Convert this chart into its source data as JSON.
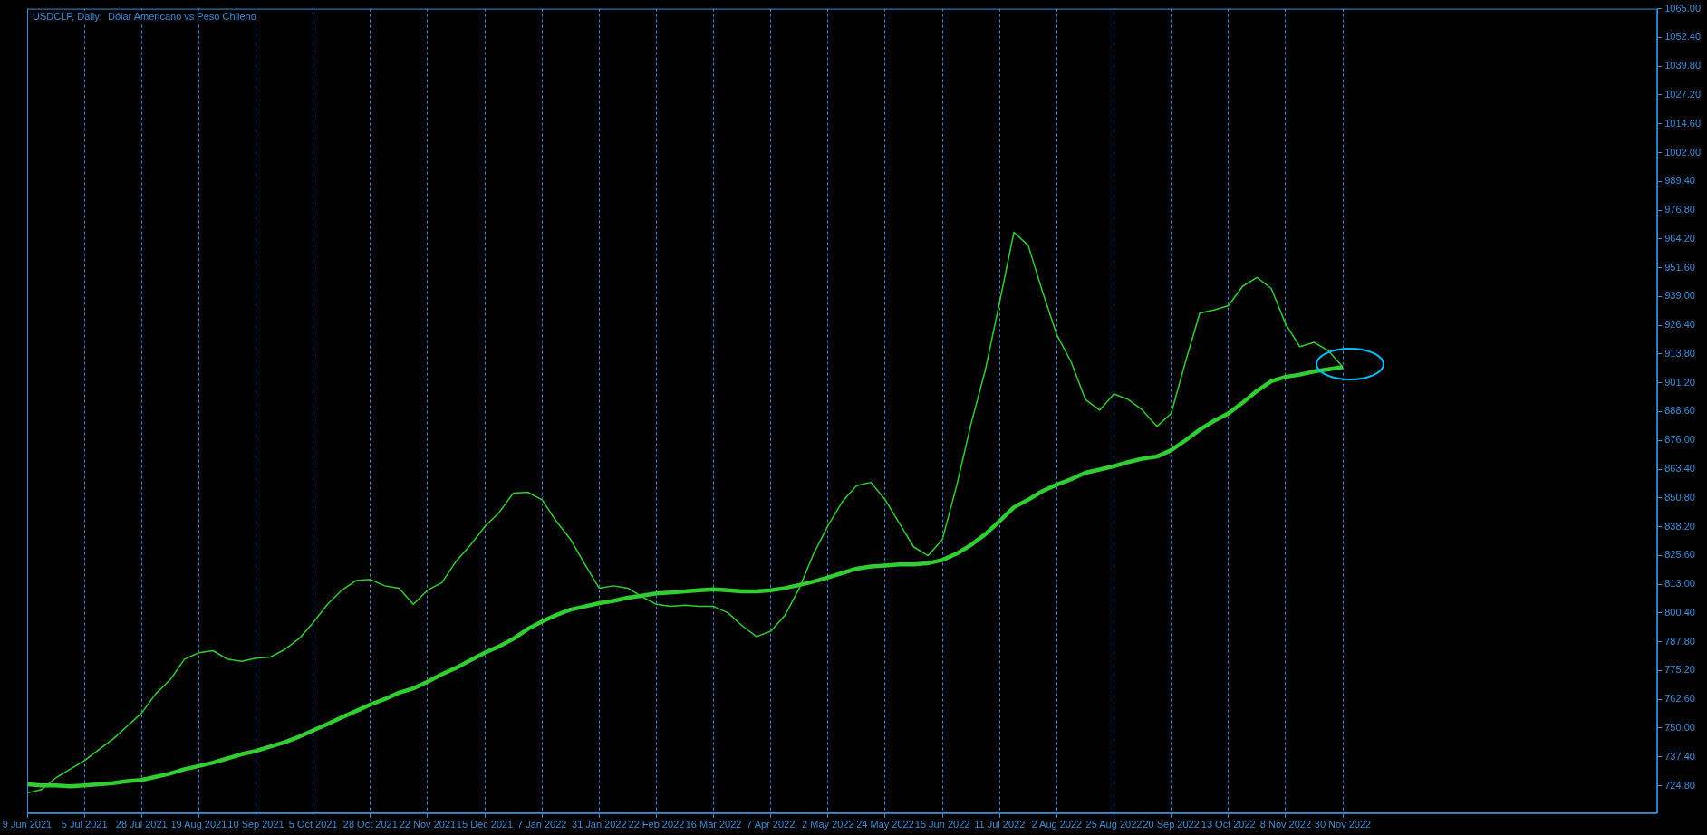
{
  "chart_data": {
    "type": "line",
    "title": "USDCLP, Daily:  Dólar Americano vs Peso Chileno",
    "categories": [
      "9 Jun 2021",
      null,
      null,
      null,
      "5 Jul 2021",
      null,
      null,
      null,
      "28 Jul 2021",
      null,
      null,
      null,
      "19 Aug 2021",
      null,
      null,
      null,
      "10 Sep 2021",
      null,
      null,
      null,
      "5 Oct 2021",
      null,
      null,
      null,
      "28 Oct 2021",
      null,
      null,
      null,
      "22 Nov 2021",
      null,
      null,
      null,
      "15 Dec 2021",
      null,
      null,
      null,
      "7 Jan 2022",
      null,
      null,
      null,
      "31 Jan 2022",
      null,
      null,
      null,
      "22 Feb 2022",
      null,
      null,
      null,
      "16 Mar 2022",
      null,
      null,
      null,
      "7 Apr 2022",
      null,
      null,
      null,
      "2 May 2022",
      null,
      null,
      null,
      "24 May 2022",
      null,
      null,
      null,
      "15 Jun 2022",
      null,
      null,
      null,
      "11 Jul 2022",
      null,
      null,
      null,
      "2 Aug 2022",
      null,
      null,
      null,
      "25 Aug 2022",
      null,
      null,
      null,
      "20 Sep 2022",
      null,
      null,
      null,
      "13 Oct 2022",
      null,
      null,
      null,
      "8 Nov 2022",
      null,
      null,
      null,
      "30 Nov 2022",
      null,
      null,
      null,
      null,
      null,
      null,
      null,
      null,
      null,
      null,
      null,
      null,
      null,
      null,
      null,
      null,
      null,
      null,
      null,
      null,
      null,
      null
    ],
    "series": [
      {
        "color": "#32cd32",
        "values": [
          721.6,
          723.1,
          728.2,
          732.0,
          735.8,
          740.5,
          745.2,
          750.9,
          756.6,
          765.1,
          771.2,
          780.2,
          783.0,
          783.9,
          780.2,
          779.2,
          780.6,
          781.1,
          784.4,
          789.1,
          796.2,
          804.2,
          810.4,
          814.6,
          815.1,
          812.3,
          811.3,
          804.2,
          810.4,
          813.7,
          823.1,
          830.2,
          838.2,
          844.4,
          852.9,
          853.3,
          850.0,
          840.6,
          832.6,
          821.7,
          811.3,
          812.3,
          811.3,
          807.5,
          804.2,
          803.3,
          803.8,
          803.3,
          803.3,
          800.5,
          794.8,
          790.1,
          792.4,
          799.5,
          811.3,
          826.4,
          838.7,
          849.1,
          856.2,
          857.6,
          850.0,
          839.6,
          829.3,
          825.5,
          832.6,
          856.2,
          883.1,
          906.7,
          936.4,
          967.1,
          961.4,
          941.1,
          922.2,
          910.4,
          893.9,
          889.2,
          896.3,
          893.9,
          889.2,
          882.1,
          887.8,
          910.4,
          931.7,
          933.1,
          935.0,
          943.5,
          947.3,
          942.5,
          927.0,
          917.0,
          918.9,
          915.2,
          908.1,
          null,
          null,
          null,
          null,
          null,
          null,
          null,
          null,
          null,
          null,
          null,
          null,
          null,
          null,
          null,
          null,
          null,
          null,
          null,
          null,
          null,
          null
        ]
      },
      {
        "color": "#32cd32",
        "values": [
          725.4,
          724.9,
          724.9,
          724.5,
          724.9,
          725.4,
          725.9,
          726.8,
          727.3,
          728.7,
          730.1,
          732.0,
          733.4,
          734.9,
          736.7,
          738.6,
          740.0,
          741.9,
          743.8,
          746.2,
          749.0,
          751.8,
          754.7,
          757.5,
          760.3,
          762.7,
          765.5,
          767.4,
          770.3,
          773.6,
          776.4,
          779.7,
          783.0,
          785.8,
          789.1,
          793.4,
          796.7,
          799.5,
          801.9,
          803.3,
          804.7,
          805.7,
          807.1,
          808.0,
          809.0,
          809.4,
          809.9,
          810.4,
          810.8,
          810.4,
          809.9,
          809.9,
          810.4,
          811.3,
          812.7,
          814.2,
          816.0,
          817.9,
          819.8,
          820.8,
          821.2,
          821.7,
          821.7,
          822.2,
          823.6,
          826.4,
          830.2,
          834.9,
          840.6,
          846.7,
          850.0,
          853.8,
          856.6,
          859.0,
          861.8,
          863.2,
          864.7,
          866.5,
          868.0,
          868.9,
          871.7,
          876.0,
          880.7,
          884.5,
          887.8,
          892.5,
          897.7,
          901.9,
          903.8,
          904.8,
          906.2,
          907.1,
          908.1,
          null,
          null,
          null,
          null,
          null,
          null,
          null,
          null,
          null,
          null,
          null,
          null,
          null,
          null,
          null,
          null,
          null,
          null,
          null,
          null,
          null,
          null
        ]
      }
    ],
    "ylim": [
      712.8,
      1065
    ],
    "yticks": [
      {
        "value": 724.8,
        "label": "724.80"
      },
      {
        "value": 737.4,
        "label": "737.40"
      },
      {
        "value": 750,
        "label": "750.00"
      },
      {
        "value": 762.6,
        "label": "762.60"
      },
      {
        "value": 775.2,
        "label": "775.20"
      },
      {
        "value": 787.8,
        "label": "787.80"
      },
      {
        "value": 800.4,
        "label": "800.40"
      },
      {
        "value": 813,
        "label": "813.00"
      },
      {
        "value": 825.6,
        "label": "825.60"
      },
      {
        "value": 838.2,
        "label": "838.20"
      },
      {
        "value": 850.8,
        "label": "850.80"
      },
      {
        "value": 863.4,
        "label": "863.40"
      },
      {
        "value": 876,
        "label": "876.00"
      },
      {
        "value": 888.6,
        "label": "888.60"
      },
      {
        "value": 901.2,
        "label": "901.20"
      },
      {
        "value": 913.8,
        "label": "913.80"
      },
      {
        "value": 926.4,
        "label": "926.40"
      },
      {
        "value": 939,
        "label": "939.00"
      },
      {
        "value": 951.6,
        "label": "951.60"
      },
      {
        "value": 964.2,
        "label": "964.20"
      },
      {
        "value": 976.8,
        "label": "976.80"
      },
      {
        "value": 989.4,
        "label": "989.40"
      },
      {
        "value": 1002,
        "label": "1002.00"
      },
      {
        "value": 1014.6,
        "label": "1014.60"
      },
      {
        "value": 1027.2,
        "label": "1027.20"
      },
      {
        "value": 1039.8,
        "label": "1039.80"
      },
      {
        "value": 1052.4,
        "label": "1052.40"
      },
      {
        "value": 1065,
        "label": "1065.00"
      }
    ],
    "grid": "x",
    "marker": "none"
  }
}
